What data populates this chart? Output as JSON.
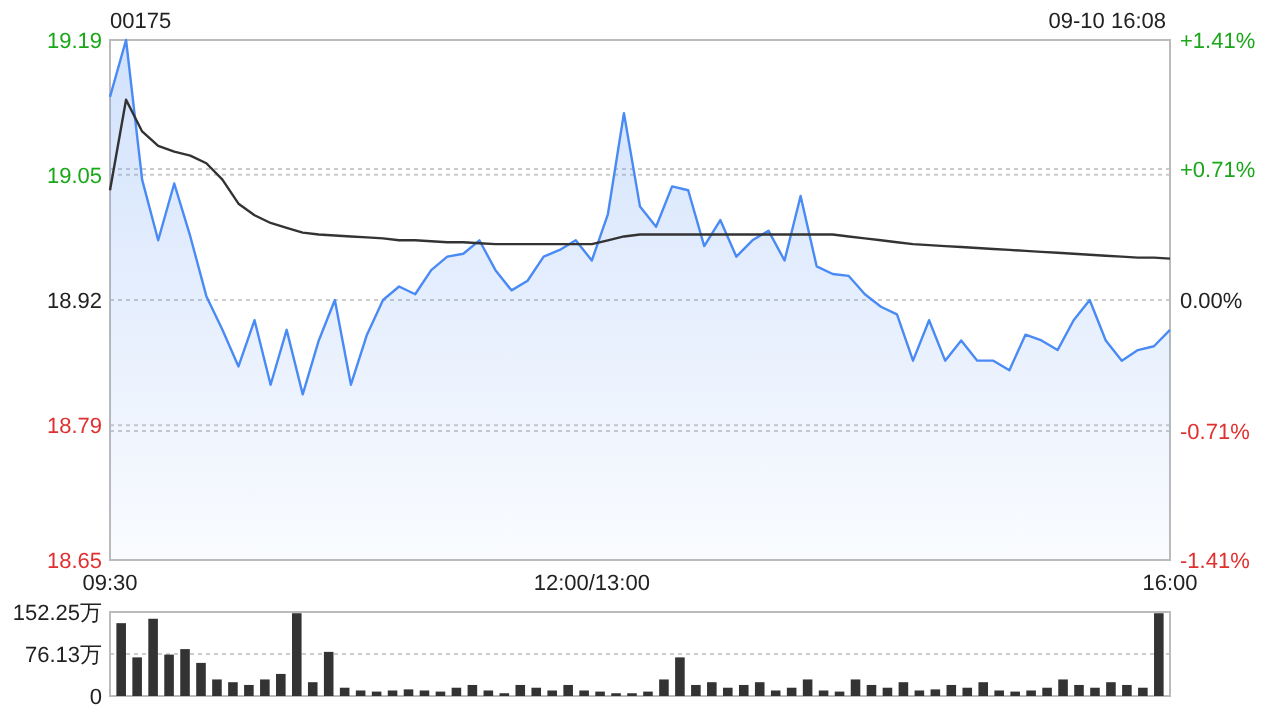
{
  "chart_data": [
    {
      "type": "line",
      "title": "00175",
      "annotations": [
        "09-10 16:08"
      ],
      "grid": "y",
      "categories": [
        "09:30",
        null,
        null,
        null,
        null,
        null,
        null,
        null,
        null,
        null,
        null,
        null,
        null,
        null,
        null,
        null,
        null,
        null,
        null,
        null,
        null,
        null,
        null,
        null,
        null,
        null,
        null,
        null,
        null,
        null,
        "12:00/13:00",
        null,
        null,
        null,
        null,
        null,
        null,
        null,
        null,
        null,
        null,
        null,
        null,
        null,
        null,
        null,
        null,
        null,
        null,
        null,
        null,
        null,
        null,
        null,
        null,
        null,
        null,
        null,
        null,
        null,
        null,
        null,
        null,
        null,
        null,
        null,
        "16:00"
      ],
      "ylim": [
        18.65,
        19.19
      ],
      "yticks": [
        18.65,
        18.79,
        18.92,
        19.05,
        19.19
      ],
      "y2lim": [
        -1.41,
        1.41
      ],
      "y2ticks": [
        {
          "value": -1.41,
          "label": "-1.41%"
        },
        {
          "value": -0.71,
          "label": "-0.71%"
        },
        {
          "value": 0,
          "label": "0.00%"
        },
        {
          "value": 0.71,
          "label": "+0.71%"
        },
        {
          "value": 1.41,
          "label": "+1.41%"
        }
      ],
      "series": [
        {
          "type": "area",
          "color": "#4a8af4",
          "values": [
            19.131,
            19.19,
            19.045,
            18.982,
            19.041,
            18.986,
            18.924,
            18.889,
            18.851,
            18.899,
            18.832,
            18.889,
            18.822,
            18.878,
            18.92,
            18.832,
            18.884,
            18.92,
            18.934,
            18.926,
            18.951,
            18.965,
            18.968,
            18.982,
            18.951,
            18.93,
            18.94,
            18.965,
            18.972,
            18.982,
            18.961,
            19.009,
            19.114,
            19.017,
            18.996,
            19.038,
            19.034,
            18.976,
            19.003,
            18.965,
            18.982,
            18.992,
            18.961,
            19.028,
            18.955,
            18.947,
            18.945,
            18.926,
            18.913,
            18.905,
            18.857,
            18.899,
            18.857,
            18.878,
            18.857,
            18.857,
            18.847,
            18.884,
            18.878,
            18.868,
            18.899,
            18.92,
            18.878,
            18.857,
            18.868,
            18.872,
            18.889
          ]
        },
        {
          "color": "#333333",
          "values": [
            19.034,
            19.128,
            19.095,
            19.08,
            19.074,
            19.07,
            19.062,
            19.045,
            19.02,
            19.008,
            19.0,
            18.995,
            18.99,
            18.988,
            18.987,
            18.986,
            18.985,
            18.984,
            18.982,
            18.982,
            18.981,
            18.98,
            18.98,
            18.979,
            18.978,
            18.978,
            18.978,
            18.978,
            18.978,
            18.978,
            18.978,
            18.982,
            18.986,
            18.988,
            18.988,
            18.988,
            18.988,
            18.988,
            18.988,
            18.988,
            18.988,
            18.988,
            18.988,
            18.988,
            18.988,
            18.988,
            18.986,
            18.984,
            18.982,
            18.98,
            18.978,
            18.977,
            18.976,
            18.975,
            18.974,
            18.973,
            18.972,
            18.971,
            18.97,
            18.969,
            18.968,
            18.967,
            18.966,
            18.965,
            18.964,
            18.964,
            18.963
          ]
        }
      ]
    },
    {
      "type": "bar",
      "color": "#333333",
      "grid": "y",
      "tick_labels": "y",
      "ylim": [
        0,
        152.25
      ],
      "yticks": [
        {
          "value": 0,
          "label": "0"
        },
        {
          "value": 76.13,
          "label": "76.13万"
        },
        {
          "value": 152.25,
          "label": "152.25万"
        }
      ],
      "categories": [
        null,
        null,
        null,
        null,
        null,
        null,
        null,
        null,
        null,
        null,
        null,
        null,
        null,
        null,
        null,
        null,
        null,
        null,
        null,
        null,
        null,
        null,
        null,
        null,
        null,
        null,
        null,
        null,
        null,
        null,
        null,
        null,
        null,
        null,
        null,
        null,
        null,
        null,
        null,
        null,
        null,
        null,
        null,
        null,
        null,
        null,
        null,
        null,
        null,
        null,
        null,
        null,
        null,
        null,
        null,
        null,
        null,
        null,
        null,
        null,
        null,
        null,
        null,
        null,
        null,
        null
      ],
      "values": [
        132,
        70,
        140,
        75,
        85,
        60,
        30,
        25,
        20,
        30,
        40,
        150,
        25,
        80,
        15,
        10,
        8,
        10,
        12,
        10,
        8,
        15,
        20,
        10,
        5,
        20,
        15,
        10,
        20,
        10,
        8,
        5,
        5,
        8,
        30,
        70,
        20,
        25,
        15,
        20,
        25,
        10,
        15,
        30,
        10,
        8,
        30,
        20,
        15,
        25,
        10,
        12,
        20,
        15,
        25,
        10,
        8,
        10,
        15,
        30,
        20,
        15,
        25,
        20,
        15,
        150
      ]
    }
  ]
}
